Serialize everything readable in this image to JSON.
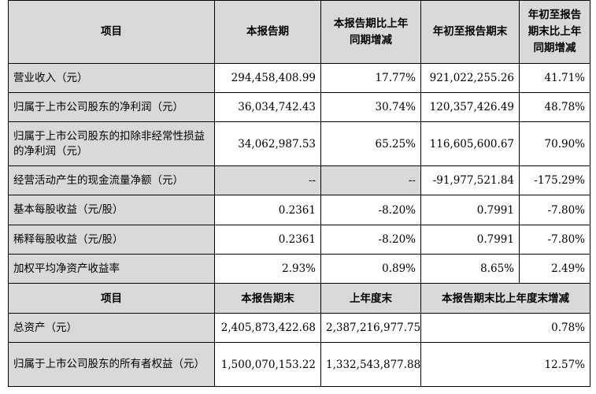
{
  "header1": {
    "col1": "项目",
    "col2": "本报告期",
    "col3_l1": "本报告期比上年",
    "col3_l2": "同期增减",
    "col4": "年初至报告期末",
    "col5_l1": "年初至报告",
    "col5_l2": "期末比上年",
    "col5_l3": "同期增减"
  },
  "rows1": [
    {
      "label": "营业收入（元）",
      "v1": "294,458,408.99",
      "v2": "17.77%",
      "v3": "921,022,255.26",
      "v4": "41.71%"
    },
    {
      "label": "归属于上市公司股东的净利润（元）",
      "v1": "36,034,742.43",
      "v2": "30.74%",
      "v3": "120,357,426.49",
      "v4": "48.78%"
    },
    {
      "label": "归属于上市公司股东的扣除非经常性损益的净利润（元）",
      "v1": "34,062,987.53",
      "v2": "65.25%",
      "v3": "116,605,600.67",
      "v4": "70.90%"
    },
    {
      "label": "经营活动产生的现金流量净额（元）",
      "v1": "--",
      "v2": "--",
      "v3": "-91,977,521.84",
      "v4": "-175.29%"
    },
    {
      "label": "基本每股收益（元/股）",
      "v1": "0.2361",
      "v2": "-8.20%",
      "v3": "0.7991",
      "v4": "-7.80%"
    },
    {
      "label": "稀释每股收益（元/股）",
      "v1": "0.2361",
      "v2": "-8.20%",
      "v3": "0.7991",
      "v4": "-7.80%"
    },
    {
      "label": "加权平均净资产收益率",
      "v1": "2.93%",
      "v2": "0.89%",
      "v3": "8.65%",
      "v4": "2.49%"
    }
  ],
  "header2": {
    "col1": "项目",
    "col2": "本报告期末",
    "col3": "上年度末",
    "col45": "本报告期末比上年度末增减"
  },
  "rows2": [
    {
      "label": "总资产（元）",
      "v1": "2,405,873,422.68",
      "v2": "2,387,216,977.75",
      "v3": "0.78%"
    },
    {
      "label": "归属于上市公司股东的所有者权益（元）",
      "v1": "1,500,070,153.22",
      "v2": "1,332,543,877.88",
      "v3": "12.57%"
    }
  ]
}
